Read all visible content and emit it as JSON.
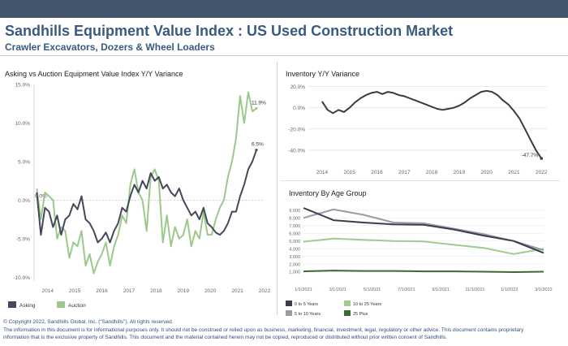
{
  "header": {
    "title": "Sandhills Equipment Value Index : US Used Construction Market",
    "subtitle": "Crawler Excavators, Dozers &  Wheel Loaders"
  },
  "colors": {
    "header_bar": "#44546a",
    "title": "#3a5a80",
    "asking": "#44485a",
    "auction": "#9cc88c",
    "inventory": "#3b3b3b",
    "age_0_5": "#3a3f4e",
    "age_5_10": "#9a9ca4",
    "age_10_25": "#9fcc8e",
    "age_25_plus": "#3d6b34"
  },
  "footer": {
    "copyright": "© Copyright 2022, Sandhills Global, Inc. (\"Sandhills\"). All rights reserved.",
    "line1": "The information in this document is for informational purposes only.  It should not be construed or relied upon as business, marketing, financial, investment, legal, regulatory or other advice. This document contains proprietary",
    "line2": "information that is the exclusive property of Sandhills. This document and the material contained herein may not be copied, reproduced or distributed without prior written consent of Sandhills."
  },
  "chart_data": [
    {
      "type": "line",
      "title": "Asking vs Auction Equipment Value Index Y/Y Variance",
      "x_ticks": [
        "2014",
        "2015",
        "2016",
        "2017",
        "2018",
        "2019",
        "2020",
        "2021",
        "2022"
      ],
      "x_range": [
        2013.5,
        2022.0
      ],
      "y_ticks": [
        "15.0%",
        "10.0%",
        "5.0%",
        "0.0%",
        "-5.0%",
        "-10.0%"
      ],
      "ylim": [
        -10.5,
        15.0
      ],
      "zero_label": "0.0%",
      "legend_position": "bottom-left",
      "series": [
        {
          "name": "Asking",
          "end_label": "6.5%",
          "x": [
            2013.6,
            2013.75,
            2013.9,
            2014.05,
            2014.2,
            2014.35,
            2014.5,
            2014.65,
            2014.8,
            2014.95,
            2015.1,
            2015.25,
            2015.4,
            2015.55,
            2015.7,
            2015.85,
            2016.0,
            2016.15,
            2016.3,
            2016.45,
            2016.6,
            2016.75,
            2016.9,
            2017.05,
            2017.2,
            2017.35,
            2017.5,
            2017.65,
            2017.8,
            2017.95,
            2018.1,
            2018.25,
            2018.4,
            2018.55,
            2018.7,
            2018.85,
            2019.0,
            2019.15,
            2019.3,
            2019.45,
            2019.6,
            2019.75,
            2019.9,
            2020.05,
            2020.2,
            2020.35,
            2020.5,
            2020.65,
            2020.8,
            2020.95,
            2021.1,
            2021.25,
            2021.4,
            2021.55,
            2021.7
          ],
          "values": [
            1.0,
            -4.5,
            -1.0,
            -1.5,
            -3.5,
            -2.0,
            -4.5,
            -2.5,
            -2.0,
            -0.5,
            -1.2,
            0.5,
            -2.5,
            -3.0,
            -4.0,
            -5.5,
            -5.0,
            -4.2,
            -5.5,
            -4.0,
            -3.0,
            -1.0,
            -1.5,
            0.5,
            2.0,
            1.0,
            2.5,
            1.5,
            3.5,
            2.5,
            3.0,
            1.5,
            2.0,
            1.0,
            0.5,
            1.5,
            0.0,
            -1.0,
            -2.0,
            -1.5,
            -2.5,
            -1.0,
            -3.0,
            -3.5,
            -4.2,
            -4.5,
            -4.0,
            -3.0,
            -1.5,
            -1.5,
            0.5,
            2.0,
            4.0,
            5.0,
            6.5
          ]
        },
        {
          "name": "Auction",
          "end_label": "11.9%",
          "x": [
            2013.6,
            2013.75,
            2013.9,
            2014.05,
            2014.2,
            2014.35,
            2014.5,
            2014.65,
            2014.8,
            2014.95,
            2015.1,
            2015.25,
            2015.4,
            2015.55,
            2015.7,
            2015.85,
            2016.0,
            2016.15,
            2016.3,
            2016.45,
            2016.6,
            2016.75,
            2016.9,
            2017.05,
            2017.2,
            2017.35,
            2017.5,
            2017.65,
            2017.8,
            2017.95,
            2018.1,
            2018.25,
            2018.4,
            2018.55,
            2018.7,
            2018.85,
            2019.0,
            2019.15,
            2019.3,
            2019.45,
            2019.6,
            2019.75,
            2019.9,
            2020.05,
            2020.2,
            2020.35,
            2020.5,
            2020.65,
            2020.8,
            2020.95,
            2021.1,
            2021.25,
            2021.4,
            2021.55,
            2021.7
          ],
          "values": [
            1.5,
            -2.5,
            1.0,
            0.5,
            0.0,
            -5.0,
            -3.5,
            -4.0,
            -7.5,
            -5.5,
            -6.0,
            -4.0,
            -8.5,
            -7.0,
            -9.5,
            -8.0,
            -7.0,
            -5.5,
            -8.5,
            -6.0,
            -4.5,
            -2.0,
            -3.0,
            2.0,
            4.0,
            1.0,
            0.0,
            -4.0,
            3.0,
            4.0,
            2.5,
            -5.5,
            -2.0,
            -6.0,
            -3.5,
            -5.0,
            -4.5,
            -2.5,
            -6.0,
            -4.0,
            -5.0,
            -1.5,
            -4.5,
            -4.5,
            -2.5,
            -1.0,
            0.0,
            3.0,
            5.0,
            8.0,
            13.5,
            10.0,
            14.0,
            11.5,
            11.9
          ]
        }
      ]
    },
    {
      "type": "line",
      "title": "Inventory Y/Y Variance",
      "x_ticks": [
        "2014",
        "2015",
        "2016",
        "2017",
        "2018",
        "2019",
        "2020",
        "2021",
        "2022"
      ],
      "x_range": [
        2013.5,
        2022.2
      ],
      "y_ticks": [
        "20.0%",
        "0.0%",
        "-20.0%",
        "-40.0%"
      ],
      "ylim": [
        -50,
        22
      ],
      "end_label": "-47.7%",
      "series": [
        {
          "name": "Inventory",
          "x": [
            2014.0,
            2014.2,
            2014.4,
            2014.6,
            2014.8,
            2015.0,
            2015.2,
            2015.4,
            2015.6,
            2015.8,
            2016.0,
            2016.2,
            2016.4,
            2016.6,
            2016.8,
            2017.0,
            2017.2,
            2017.4,
            2017.6,
            2017.8,
            2018.0,
            2018.2,
            2018.4,
            2018.6,
            2018.8,
            2019.0,
            2019.2,
            2019.4,
            2019.6,
            2019.8,
            2020.0,
            2020.2,
            2020.4,
            2020.6,
            2020.8,
            2021.0,
            2021.2,
            2021.4,
            2021.6,
            2021.8,
            2022.0
          ],
          "values": [
            6,
            -2,
            -5,
            -2,
            -4,
            0,
            5,
            9,
            12,
            14,
            15,
            13,
            15,
            14,
            12,
            11,
            9,
            7,
            5,
            3,
            1,
            -1,
            -2,
            -1,
            0,
            2,
            5,
            9,
            12,
            15,
            16,
            15,
            12,
            7,
            3,
            -3,
            -10,
            -20,
            -30,
            -40,
            -47.7
          ]
        }
      ]
    },
    {
      "type": "line",
      "title": "Inventory By Age Group",
      "x_ticks": [
        "1/1/2021",
        "3/1/2021",
        "5/1/2021",
        "7/1/2021",
        "9/1/2021",
        "11/1/2021",
        "1/1/2022",
        "3/1/2022"
      ],
      "y_ticks": [
        "9,000",
        "8,000",
        "7,000",
        "6,000",
        "5,000",
        "4,000",
        "3,000",
        "2,000",
        "1,000"
      ],
      "ylim": [
        0,
        9300
      ],
      "legend_position": "bottom",
      "series": [
        {
          "name": "0 to 5 Years",
          "values": [
            9300,
            7700,
            7400,
            7150,
            7100,
            6500,
            5700,
            5000,
            3450
          ]
        },
        {
          "name": "5 to 10 Years",
          "values": [
            8000,
            9100,
            8400,
            7400,
            7300,
            6600,
            5900,
            5000,
            3800
          ]
        },
        {
          "name": "10 to 25 Years",
          "values": [
            4900,
            5300,
            5150,
            5000,
            4950,
            4500,
            4100,
            3300,
            4000
          ]
        },
        {
          "name": "25 Plus",
          "values": [
            1050,
            1150,
            1100,
            1100,
            1050,
            1050,
            1000,
            950,
            1000
          ]
        }
      ]
    }
  ]
}
